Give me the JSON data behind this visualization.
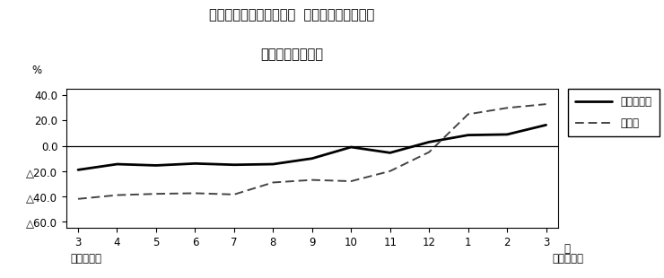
{
  "title_line1": "第２図　所定外労働時間  対前年同月比の推移",
  "title_line2": "（規模５人以上）",
  "xlabel_right": "月",
  "xlabel_bottom_left": "平成２１年",
  "xlabel_bottom_right": "平成２２年",
  "ylabel": "%",
  "x_labels": [
    "3",
    "4",
    "5",
    "6",
    "7",
    "8",
    "9",
    "10",
    "11",
    "12",
    "1",
    "2",
    "3"
  ],
  "x_values": [
    0,
    1,
    2,
    3,
    4,
    5,
    6,
    7,
    8,
    9,
    10,
    11,
    12
  ],
  "series1_name": "調査産業計",
  "series1_values": [
    -19.0,
    -14.5,
    -15.5,
    -14.0,
    -15.0,
    -14.5,
    -10.0,
    -1.0,
    -5.5,
    3.0,
    8.5,
    9.0,
    16.5
  ],
  "series2_name": "製造業",
  "series2_values": [
    -42.0,
    -39.0,
    -38.0,
    -37.5,
    -38.5,
    -29.0,
    -27.0,
    -28.0,
    -20.0,
    -5.0,
    25.0,
    30.0,
    33.0
  ],
  "ylim": [
    -65,
    45
  ],
  "yticks": [
    40.0,
    20.0,
    0.0,
    -20.0,
    -40.0,
    -60.0
  ],
  "ytick_labels": [
    "40.0",
    "20.0",
    "0.0",
    "△20.0",
    "△40.0",
    "△60.0"
  ],
  "hline_y": 0.0,
  "bg_color": "#ffffff",
  "line1_color": "#000000",
  "line2_color": "#444444",
  "title_fontsize": 10.5,
  "tick_fontsize": 8.5,
  "legend_fontsize": 8.5
}
